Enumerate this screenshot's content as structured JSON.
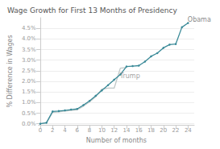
{
  "chart_data": {
    "type": "line",
    "title": "Wage Growth for First 13 Months of Presidency",
    "xlabel": "Number of months",
    "ylabel": "% Difference in Wages",
    "series": [
      {
        "name": "Obama",
        "color": "#3a8a98",
        "marker": "circle",
        "x": [
          0,
          1,
          2,
          3,
          4,
          5,
          6,
          7,
          8,
          9,
          10,
          11,
          12,
          13,
          14,
          15,
          16,
          17,
          18,
          19,
          20,
          21,
          22,
          23,
          24
        ],
        "values": [
          0.0,
          0.05,
          0.58,
          0.6,
          0.63,
          0.67,
          0.7,
          0.88,
          1.08,
          1.32,
          1.57,
          1.82,
          2.08,
          2.32,
          2.7,
          2.72,
          2.74,
          2.93,
          3.18,
          3.33,
          3.58,
          3.73,
          3.76,
          4.55,
          4.75
        ]
      },
      {
        "name": "Trump",
        "color": "#c0c8c8",
        "marker": "none",
        "x": [
          0,
          1,
          2,
          3,
          4,
          5,
          6,
          7,
          8,
          9,
          10,
          11,
          12,
          13,
          14
        ],
        "values": [
          0.0,
          0.04,
          0.53,
          0.56,
          0.6,
          0.63,
          0.66,
          0.83,
          1.03,
          1.28,
          1.63,
          1.68,
          1.68,
          2.62,
          2.65
        ]
      }
    ],
    "annotations": [
      {
        "text": "Obama",
        "x": 23.8,
        "y": 4.9
      },
      {
        "text": "Trump",
        "x": 12.8,
        "y": 2.25
      }
    ],
    "xlim": [
      -0.3,
      25
    ],
    "ylim": [
      -0.05,
      5.0
    ],
    "xticks": [
      0,
      2,
      4,
      6,
      8,
      10,
      12,
      14,
      16,
      18,
      20,
      22,
      24
    ],
    "yticks": [
      {
        "value": 0.0,
        "label": "0.0%"
      },
      {
        "value": 0.5,
        "label": "0.5%"
      },
      {
        "value": 1.0,
        "label": "1.0%"
      },
      {
        "value": 1.5,
        "label": "1.5%"
      },
      {
        "value": 2.0,
        "label": "2.0%"
      },
      {
        "value": 2.5,
        "label": "2.5%"
      },
      {
        "value": 3.0,
        "label": "3.0%"
      },
      {
        "value": 3.5,
        "label": "3.5%"
      },
      {
        "value": 4.0,
        "label": "4.0%"
      },
      {
        "value": 4.5,
        "label": "4.5%"
      }
    ],
    "grid": true
  }
}
